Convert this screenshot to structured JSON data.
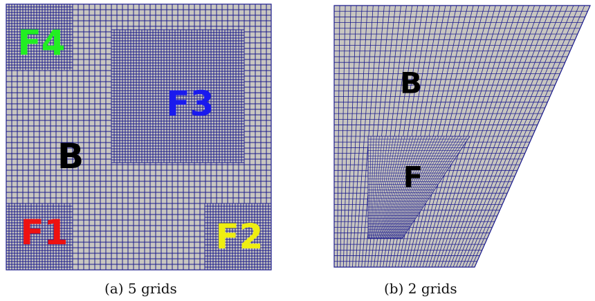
{
  "colors": {
    "background": "#ffffff",
    "grid_fill": "#c8c6c0",
    "grid_line": "#1a1a8c"
  },
  "panel_a": {
    "caption": "(a) 5 grids",
    "base_label": "B",
    "base_label_color": "#000000",
    "fine_grids": [
      {
        "label": "F4",
        "color": "#22ee22"
      },
      {
        "label": "F3",
        "color": "#1a1aee"
      },
      {
        "label": "F1",
        "color": "#ee1111"
      },
      {
        "label": "F2",
        "color": "#eeee11"
      }
    ]
  },
  "panel_b": {
    "caption": "(b) 2 grids",
    "base_label": "B",
    "base_label_color": "#000000",
    "fine_label": "F",
    "fine_label_color": "#000000"
  }
}
